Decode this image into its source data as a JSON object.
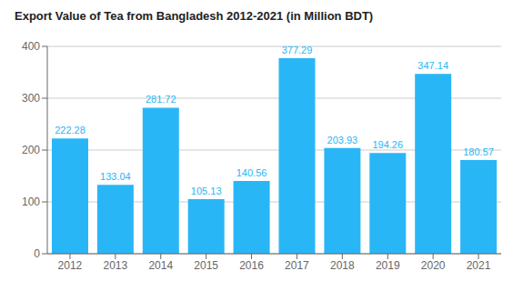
{
  "chart_data": {
    "type": "bar",
    "title": "Export Value of Tea from Bangladesh 2012-2021 (in Million BDT)",
    "categories": [
      "2012",
      "2013",
      "2014",
      "2015",
      "2016",
      "2017",
      "2018",
      "2019",
      "2020",
      "2021"
    ],
    "values": [
      222.28,
      133.04,
      281.72,
      105.13,
      140.56,
      377.29,
      203.93,
      194.26,
      347.14,
      180.57
    ],
    "color": "#29b6f6",
    "ylim": [
      0,
      400
    ],
    "yticks": [
      0,
      100,
      200,
      300,
      400
    ],
    "grid": true,
    "data_labels": true
  }
}
